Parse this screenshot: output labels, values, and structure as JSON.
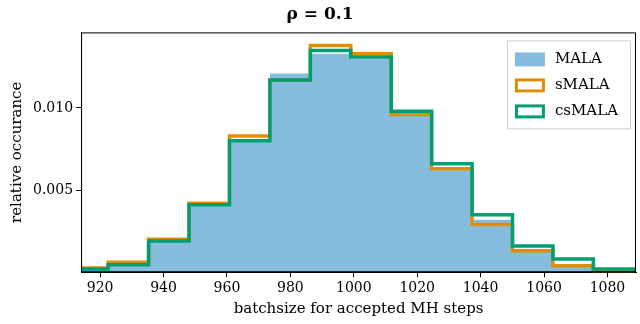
{
  "chart_data": {
    "type": "histogram",
    "title": "ρ = 0.1",
    "x_label": "batchsize for accepted MH steps",
    "y_label": "relative occurance",
    "bins": [
      909.8,
      922.55,
      935.3,
      948.05,
      960.8,
      973.55,
      986.3,
      999.05,
      1011.8,
      1024.55,
      1037.3,
      1050.05,
      1062.8,
      1075.55,
      1088.3
    ],
    "series": [
      {
        "name": "MALA",
        "color": "#86bcdd",
        "values": [
          0.0002,
          0.00045,
          0.0019,
          0.0042,
          0.0081,
          0.0121,
          0.0133,
          0.013,
          0.0098,
          0.0062,
          0.0032,
          0.0013,
          0.00045,
          0.00013
        ]
      },
      {
        "name": "sMALA",
        "color": "#de8f05",
        "values": [
          0.00026,
          0.0006,
          0.002,
          0.0042,
          0.0083,
          0.0117,
          0.0138,
          0.0133,
          0.0096,
          0.0063,
          0.0029,
          0.0013,
          0.0004,
          6e-05
        ]
      },
      {
        "name": "csMALA",
        "color": "#029e73",
        "values": [
          0.0002,
          0.00045,
          0.0019,
          0.0041,
          0.008,
          0.0117,
          0.0135,
          0.0131,
          0.0098,
          0.0066,
          0.0035,
          0.0016,
          0.0008,
          0.0002
        ]
      }
    ],
    "xlim": [
      914,
      1089
    ],
    "xticks": [
      920,
      940,
      960,
      980,
      1000,
      1020,
      1040,
      1060,
      1080
    ],
    "ylim": [
      0,
      0.0146
    ],
    "yticks": [
      0.005,
      {
        "value": 0.01,
        "label": "0.010"
      }
    ],
    "legend": "upper right",
    "grid": false
  }
}
